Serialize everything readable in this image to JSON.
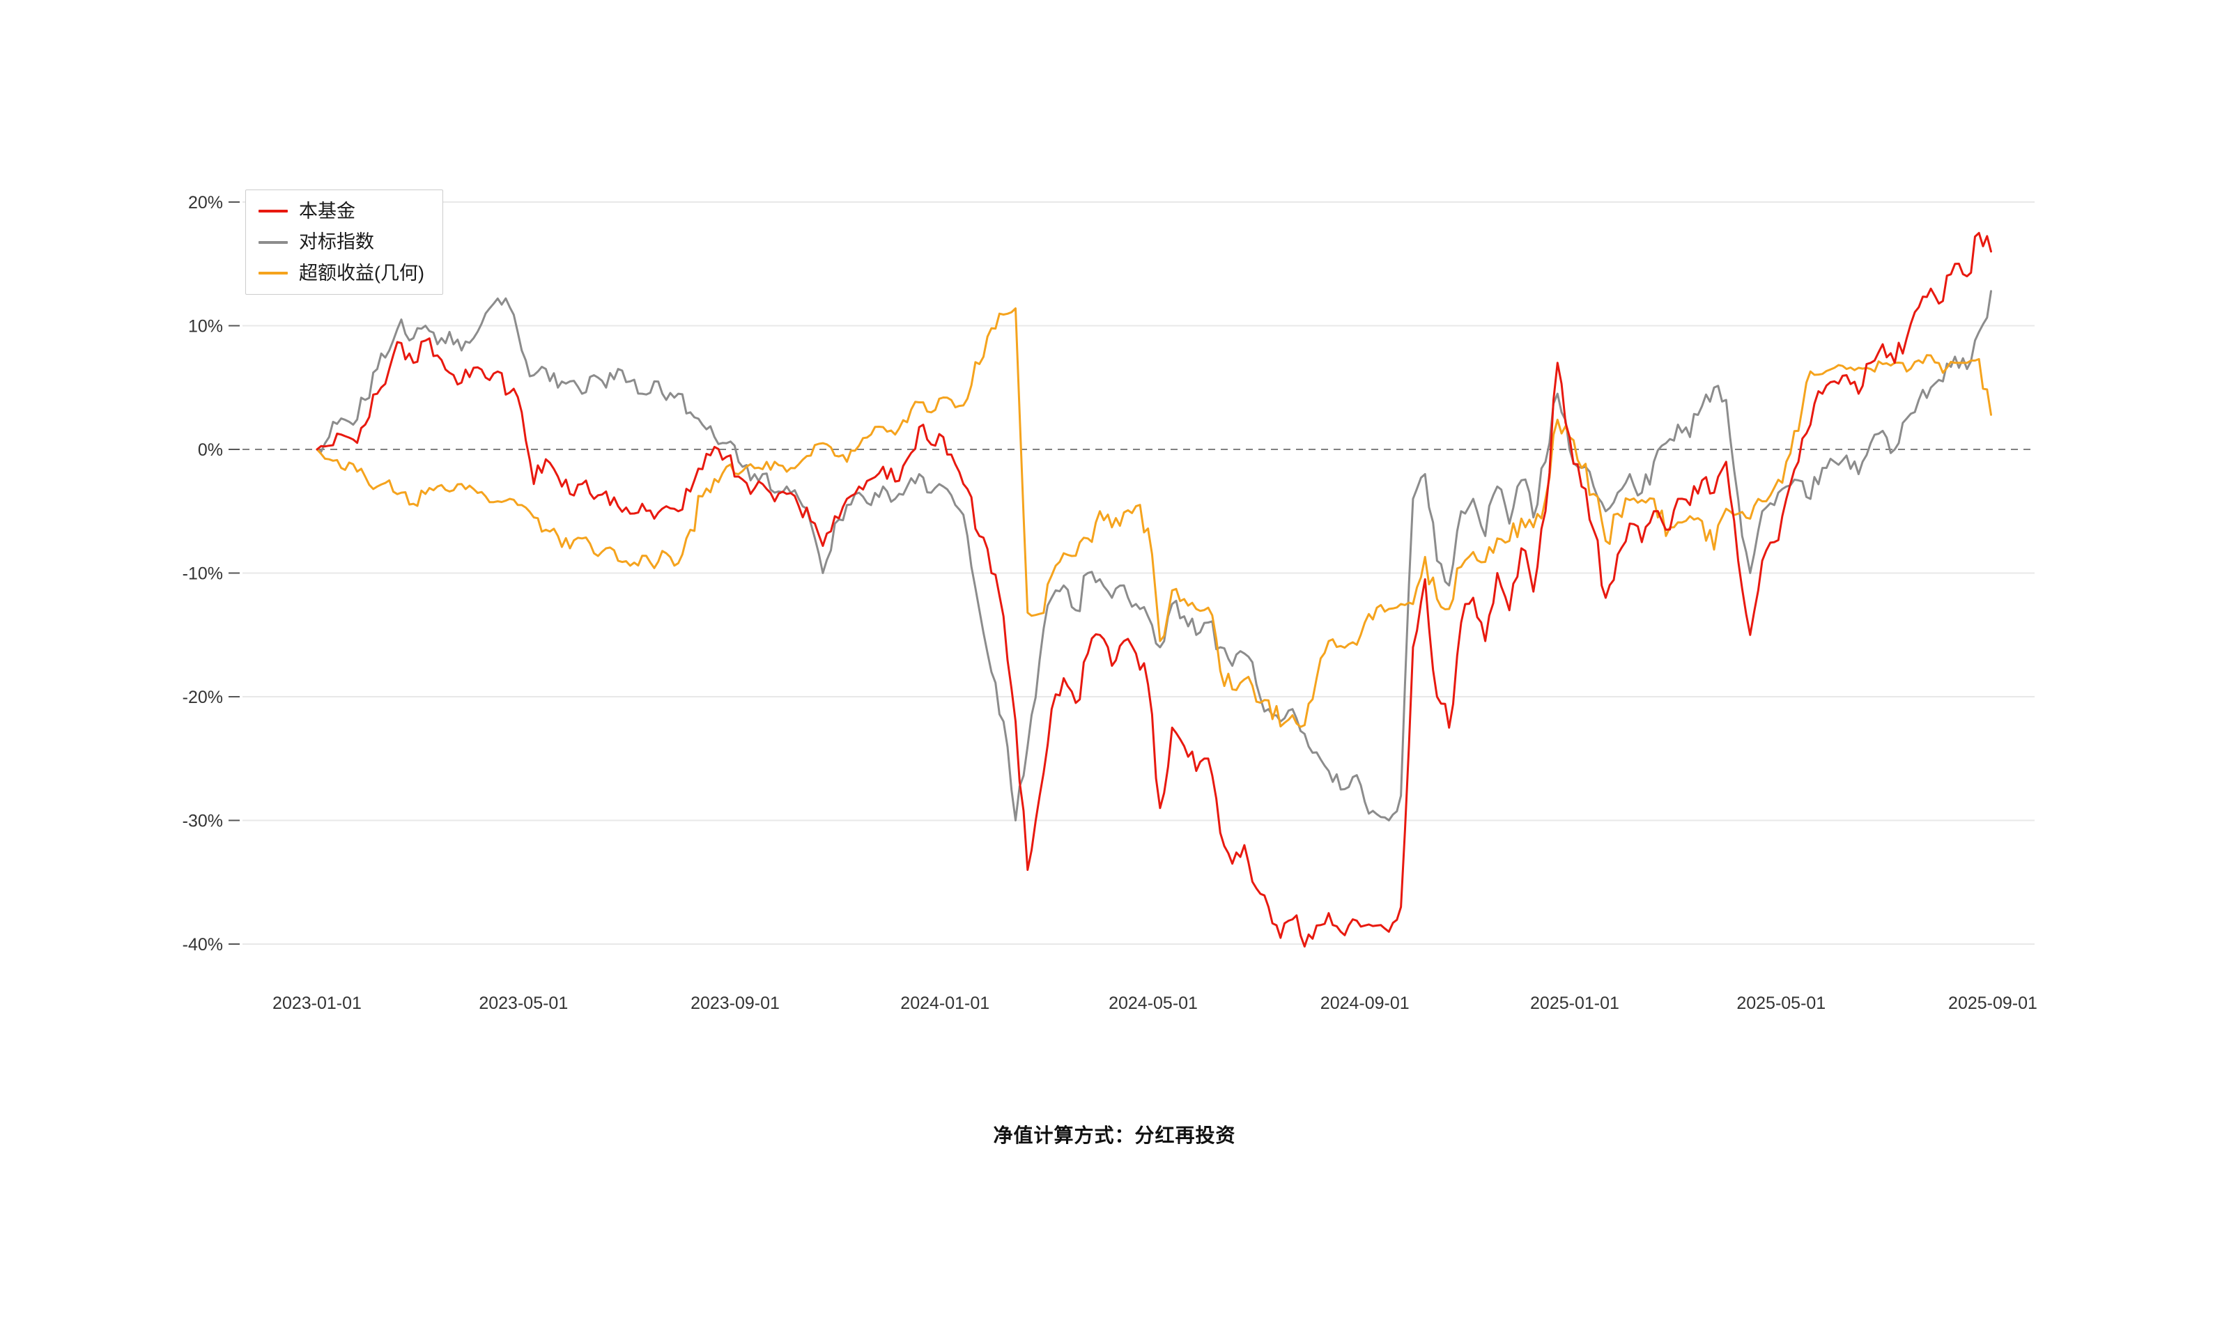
{
  "caption": "净值计算方式：分红再投资",
  "chart_data": {
    "type": "line",
    "title": "",
    "legend_position": "top-left",
    "grid": true,
    "zero_line_dashed": true,
    "ylim": [
      -43,
      21
    ],
    "y_axis": {
      "unit": "%",
      "ticks": [
        20,
        10,
        0,
        -10,
        -20,
        -30,
        -40
      ],
      "tick_labels": [
        "20%",
        "10%",
        "0%",
        "-10%",
        "-20%",
        "-30%",
        "-40%"
      ]
    },
    "x_axis": {
      "unit": "date",
      "tick_days": [
        0,
        120,
        243,
        365,
        486,
        609,
        731,
        851,
        974
      ],
      "tick_labels": [
        "2023-01-01",
        "2023-05-01",
        "2023-09-01",
        "2024-01-01",
        "2024-05-01",
        "2024-09-01",
        "2025-01-01",
        "2025-05-01",
        "2025-09-01"
      ]
    },
    "x_days": [
      0,
      7,
      14,
      21,
      28,
      35,
      42,
      49,
      56,
      63,
      70,
      77,
      84,
      91,
      98,
      105,
      112,
      119,
      126,
      133,
      140,
      147,
      154,
      161,
      168,
      175,
      182,
      189,
      196,
      203,
      210,
      217,
      224,
      231,
      238,
      245,
      252,
      259,
      266,
      273,
      280,
      287,
      294,
      301,
      308,
      315,
      322,
      329,
      336,
      343,
      350,
      357,
      364,
      371,
      378,
      385,
      392,
      399,
      406,
      413,
      420,
      427,
      434,
      441,
      448,
      455,
      462,
      469,
      476,
      483,
      490,
      497,
      504,
      511,
      518,
      525,
      532,
      539,
      546,
      553,
      560,
      567,
      574,
      581,
      588,
      595,
      602,
      609,
      616,
      623,
      630,
      637,
      644,
      651,
      658,
      665,
      672,
      679,
      686,
      693,
      700,
      707,
      714,
      721,
      728,
      735,
      742,
      749,
      756,
      763,
      770,
      777,
      784,
      791,
      798,
      805,
      812,
      819,
      826,
      833,
      840,
      847,
      854,
      861,
      868,
      875,
      882,
      889,
      896,
      903,
      910,
      917,
      924,
      931,
      938,
      945,
      952,
      959,
      966,
      973
    ],
    "series": [
      {
        "key": "fund",
        "name": "本基金",
        "color": "#e8190f",
        "values": [
          0.0,
          0.3,
          1.2,
          0.8,
          2.0,
          4.5,
          6.5,
          8.6,
          7.0,
          8.8,
          7.6,
          6.2,
          5.4,
          6.6,
          5.8,
          6.3,
          4.6,
          3.0,
          -2.8,
          -0.8,
          -2.2,
          -3.6,
          -2.8,
          -4.0,
          -3.4,
          -4.6,
          -5.2,
          -4.4,
          -5.6,
          -4.6,
          -5.0,
          -3.4,
          -1.6,
          0.2,
          -0.6,
          -2.2,
          -3.6,
          -2.8,
          -4.2,
          -3.6,
          -4.6,
          -5.8,
          -7.8,
          -5.4,
          -4.0,
          -3.0,
          -2.4,
          -1.4,
          -2.6,
          -0.8,
          1.8,
          0.4,
          1.0,
          -1.2,
          -3.2,
          -7.0,
          -10.0,
          -13.5,
          -22.0,
          -34.0,
          -28.0,
          -21.0,
          -18.5,
          -20.5,
          -16.5,
          -15.0,
          -17.5,
          -15.5,
          -16.5,
          -19.0,
          -29.0,
          -22.5,
          -24.0,
          -26.0,
          -25.0,
          -31.0,
          -33.5,
          -32.0,
          -35.5,
          -37.0,
          -39.5,
          -38.0,
          -40.2,
          -38.5,
          -37.5,
          -39.0,
          -38.0,
          -38.5,
          -38.5,
          -39.0,
          -37.0,
          -16.0,
          -10.5,
          -20.0,
          -22.5,
          -14.0,
          -12.0,
          -15.5,
          -10.0,
          -13.0,
          -8.0,
          -11.5,
          -5.0,
          7.0,
          1.0,
          -3.0,
          -6.5,
          -12.0,
          -8.5,
          -6.0,
          -7.5,
          -5.0,
          -6.5,
          -4.0,
          -4.5,
          -2.5,
          -3.5,
          -1.0,
          -9.0,
          -15.0,
          -9.0,
          -7.5,
          -4.0,
          -1.0,
          2.0,
          4.5,
          5.5,
          6.0,
          4.5,
          7.0,
          8.5,
          7.0,
          9.0,
          11.5,
          13.0,
          12.0,
          15.0,
          14.0,
          17.5,
          16.0
        ]
      },
      {
        "key": "benchmark",
        "name": "对标指数",
        "color": "#8c8c8c",
        "values": [
          0.0,
          1.0,
          2.5,
          2.0,
          4.0,
          6.5,
          8.0,
          10.5,
          9.0,
          10.0,
          8.5,
          9.5,
          8.0,
          9.0,
          11.0,
          12.2,
          11.5,
          8.0,
          6.0,
          6.5,
          5.0,
          5.5,
          4.5,
          6.0,
          5.0,
          6.5,
          5.5,
          4.5,
          5.5,
          4.0,
          4.5,
          3.0,
          2.0,
          1.0,
          0.5,
          -1.0,
          -2.5,
          -2.0,
          -3.5,
          -3.0,
          -4.0,
          -6.0,
          -10.0,
          -6.0,
          -4.5,
          -3.5,
          -4.5,
          -3.0,
          -4.0,
          -3.0,
          -2.0,
          -3.5,
          -3.0,
          -4.5,
          -7.0,
          -13.0,
          -18.0,
          -22.0,
          -30.0,
          -24.0,
          -17.0,
          -12.0,
          -11.0,
          -13.0,
          -10.0,
          -10.5,
          -12.0,
          -11.0,
          -12.5,
          -13.5,
          -16.0,
          -12.5,
          -13.5,
          -15.0,
          -14.0,
          -16.0,
          -17.5,
          -16.5,
          -19.0,
          -21.0,
          -22.0,
          -21.0,
          -23.0,
          -24.5,
          -26.0,
          -27.5,
          -26.5,
          -28.5,
          -29.5,
          -30.0,
          -28.0,
          -4.0,
          -2.0,
          -9.0,
          -11.0,
          -5.0,
          -4.0,
          -7.0,
          -3.0,
          -6.0,
          -2.5,
          -5.5,
          -1.0,
          4.5,
          0.0,
          -1.5,
          -3.0,
          -5.0,
          -3.5,
          -2.0,
          -3.5,
          -1.0,
          0.5,
          2.0,
          1.0,
          3.5,
          5.0,
          4.0,
          -4.0,
          -10.0,
          -5.0,
          -4.5,
          -3.0,
          -2.5,
          -4.0,
          -1.5,
          -1.0,
          -0.5,
          -2.0,
          0.5,
          1.5,
          0.0,
          2.5,
          4.0,
          5.0,
          5.5,
          7.5,
          6.5,
          9.5,
          12.8
        ]
      },
      {
        "key": "excess",
        "name": "超额收益(几何)",
        "color": "#f5a31d",
        "values": [
          0.0,
          -0.8,
          -1.5,
          -1.2,
          -2.2,
          -3.0,
          -2.5,
          -3.5,
          -4.4,
          -3.6,
          -3.0,
          -3.4,
          -2.8,
          -3.2,
          -3.8,
          -4.2,
          -4.0,
          -4.5,
          -5.5,
          -6.5,
          -7.0,
          -8.0,
          -7.2,
          -8.4,
          -8.0,
          -9.0,
          -9.4,
          -8.6,
          -9.6,
          -8.4,
          -9.2,
          -6.5,
          -3.8,
          -2.4,
          -1.4,
          -2.0,
          -1.2,
          -1.6,
          -1.0,
          -1.8,
          -1.2,
          -0.5,
          0.5,
          -0.5,
          -1.0,
          0.3,
          1.2,
          1.8,
          1.2,
          2.2,
          3.8,
          3.0,
          4.2,
          3.4,
          4.1,
          6.9,
          9.8,
          10.9,
          11.4,
          -13.2,
          -13.3,
          -10.2,
          -8.4,
          -8.6,
          -7.2,
          -5.0,
          -6.3,
          -5.1,
          -4.6,
          -6.4,
          -15.5,
          -11.4,
          -12.1,
          -12.9,
          -12.8,
          -17.9,
          -19.4,
          -18.6,
          -20.4,
          -20.3,
          -22.4,
          -21.5,
          -22.3,
          -18.5,
          -15.5,
          -15.9,
          -15.6,
          -14.0,
          -12.8,
          -12.9,
          -12.5,
          -12.5,
          -8.7,
          -12.1,
          -12.9,
          -9.5,
          -8.3,
          -9.1,
          -7.2,
          -7.4,
          -5.6,
          -6.3,
          -4.0,
          2.4,
          1.0,
          -1.5,
          -3.6,
          -7.4,
          -5.2,
          -4.1,
          -4.1,
          -4.0,
          -7.0,
          -5.9,
          -5.4,
          -5.8,
          -8.1,
          -4.8,
          -5.2,
          -5.6,
          -4.2,
          -3.1,
          -1.0,
          1.5,
          6.3,
          6.1,
          6.6,
          6.5,
          6.6,
          6.5,
          6.9,
          7.0,
          6.3,
          7.2,
          7.6,
          6.2,
          7.0,
          7.0,
          7.3,
          2.8
        ]
      }
    ]
  }
}
